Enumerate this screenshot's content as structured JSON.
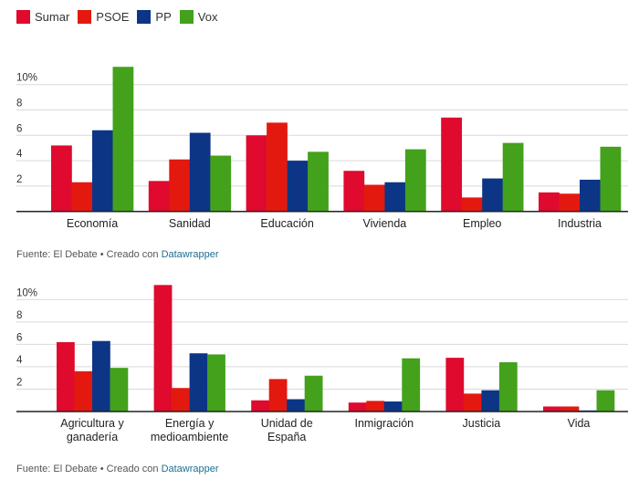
{
  "legend": [
    {
      "label": "Sumar",
      "color": "#df0a2e"
    },
    {
      "label": "PSOE",
      "color": "#e3190f"
    },
    {
      "label": "PP",
      "color": "#0c3586"
    },
    {
      "label": "Vox",
      "color": "#43a11c"
    }
  ],
  "sources": [
    {
      "prefix": "Fuente: El Debate • Creado con ",
      "link": "Datawrapper"
    },
    {
      "prefix": "Fuente: El Debate • Creado con ",
      "link": "Datawrapper"
    }
  ],
  "chart_data": [
    {
      "type": "bar",
      "title": "",
      "xlabel": "",
      "ylabel": "",
      "ylim": [
        0,
        11.5
      ],
      "yticks": [
        2,
        4,
        6,
        8,
        10
      ],
      "ytick_labels": [
        "2",
        "4",
        "6",
        "8",
        "10%"
      ],
      "grid": true,
      "legend_position": "top-left",
      "categories": [
        [
          "Economía"
        ],
        [
          "Sanidad"
        ],
        [
          "Educación"
        ],
        [
          "Vivienda"
        ],
        [
          "Empleo"
        ],
        [
          "Industria"
        ]
      ],
      "series": [
        {
          "name": "Sumar",
          "values": [
            5.2,
            2.4,
            6.0,
            3.2,
            7.4,
            1.5
          ]
        },
        {
          "name": "PSOE",
          "values": [
            2.3,
            4.1,
            7.0,
            2.1,
            1.1,
            1.4
          ]
        },
        {
          "name": "PP",
          "values": [
            6.4,
            6.2,
            4.0,
            2.3,
            2.6,
            2.5
          ]
        },
        {
          "name": "Vox",
          "values": [
            11.4,
            4.4,
            4.7,
            4.9,
            5.4,
            5.1
          ]
        }
      ]
    },
    {
      "type": "bar",
      "title": "",
      "xlabel": "",
      "ylabel": "",
      "ylim": [
        0,
        11.5
      ],
      "yticks": [
        2,
        4,
        6,
        8,
        10
      ],
      "ytick_labels": [
        "2",
        "4",
        "6",
        "8",
        "10%"
      ],
      "grid": true,
      "legend_position": "top-left",
      "categories": [
        [
          "Agricultura y",
          "ganadería"
        ],
        [
          "Energía y",
          "medioambiente"
        ],
        [
          "Unidad de",
          "España"
        ],
        [
          "Inmigración"
        ],
        [
          "Justicia"
        ],
        [
          "Vida"
        ]
      ],
      "series": [
        {
          "name": "Sumar",
          "values": [
            6.2,
            11.3,
            1.0,
            0.8,
            4.8,
            0.45
          ]
        },
        {
          "name": "PSOE",
          "values": [
            3.6,
            2.1,
            2.9,
            0.95,
            1.6,
            0.45
          ]
        },
        {
          "name": "PP",
          "values": [
            6.3,
            5.2,
            1.1,
            0.9,
            1.9,
            0.1
          ]
        },
        {
          "name": "Vox",
          "values": [
            3.9,
            5.1,
            3.2,
            4.75,
            4.4,
            1.9
          ]
        }
      ]
    }
  ]
}
